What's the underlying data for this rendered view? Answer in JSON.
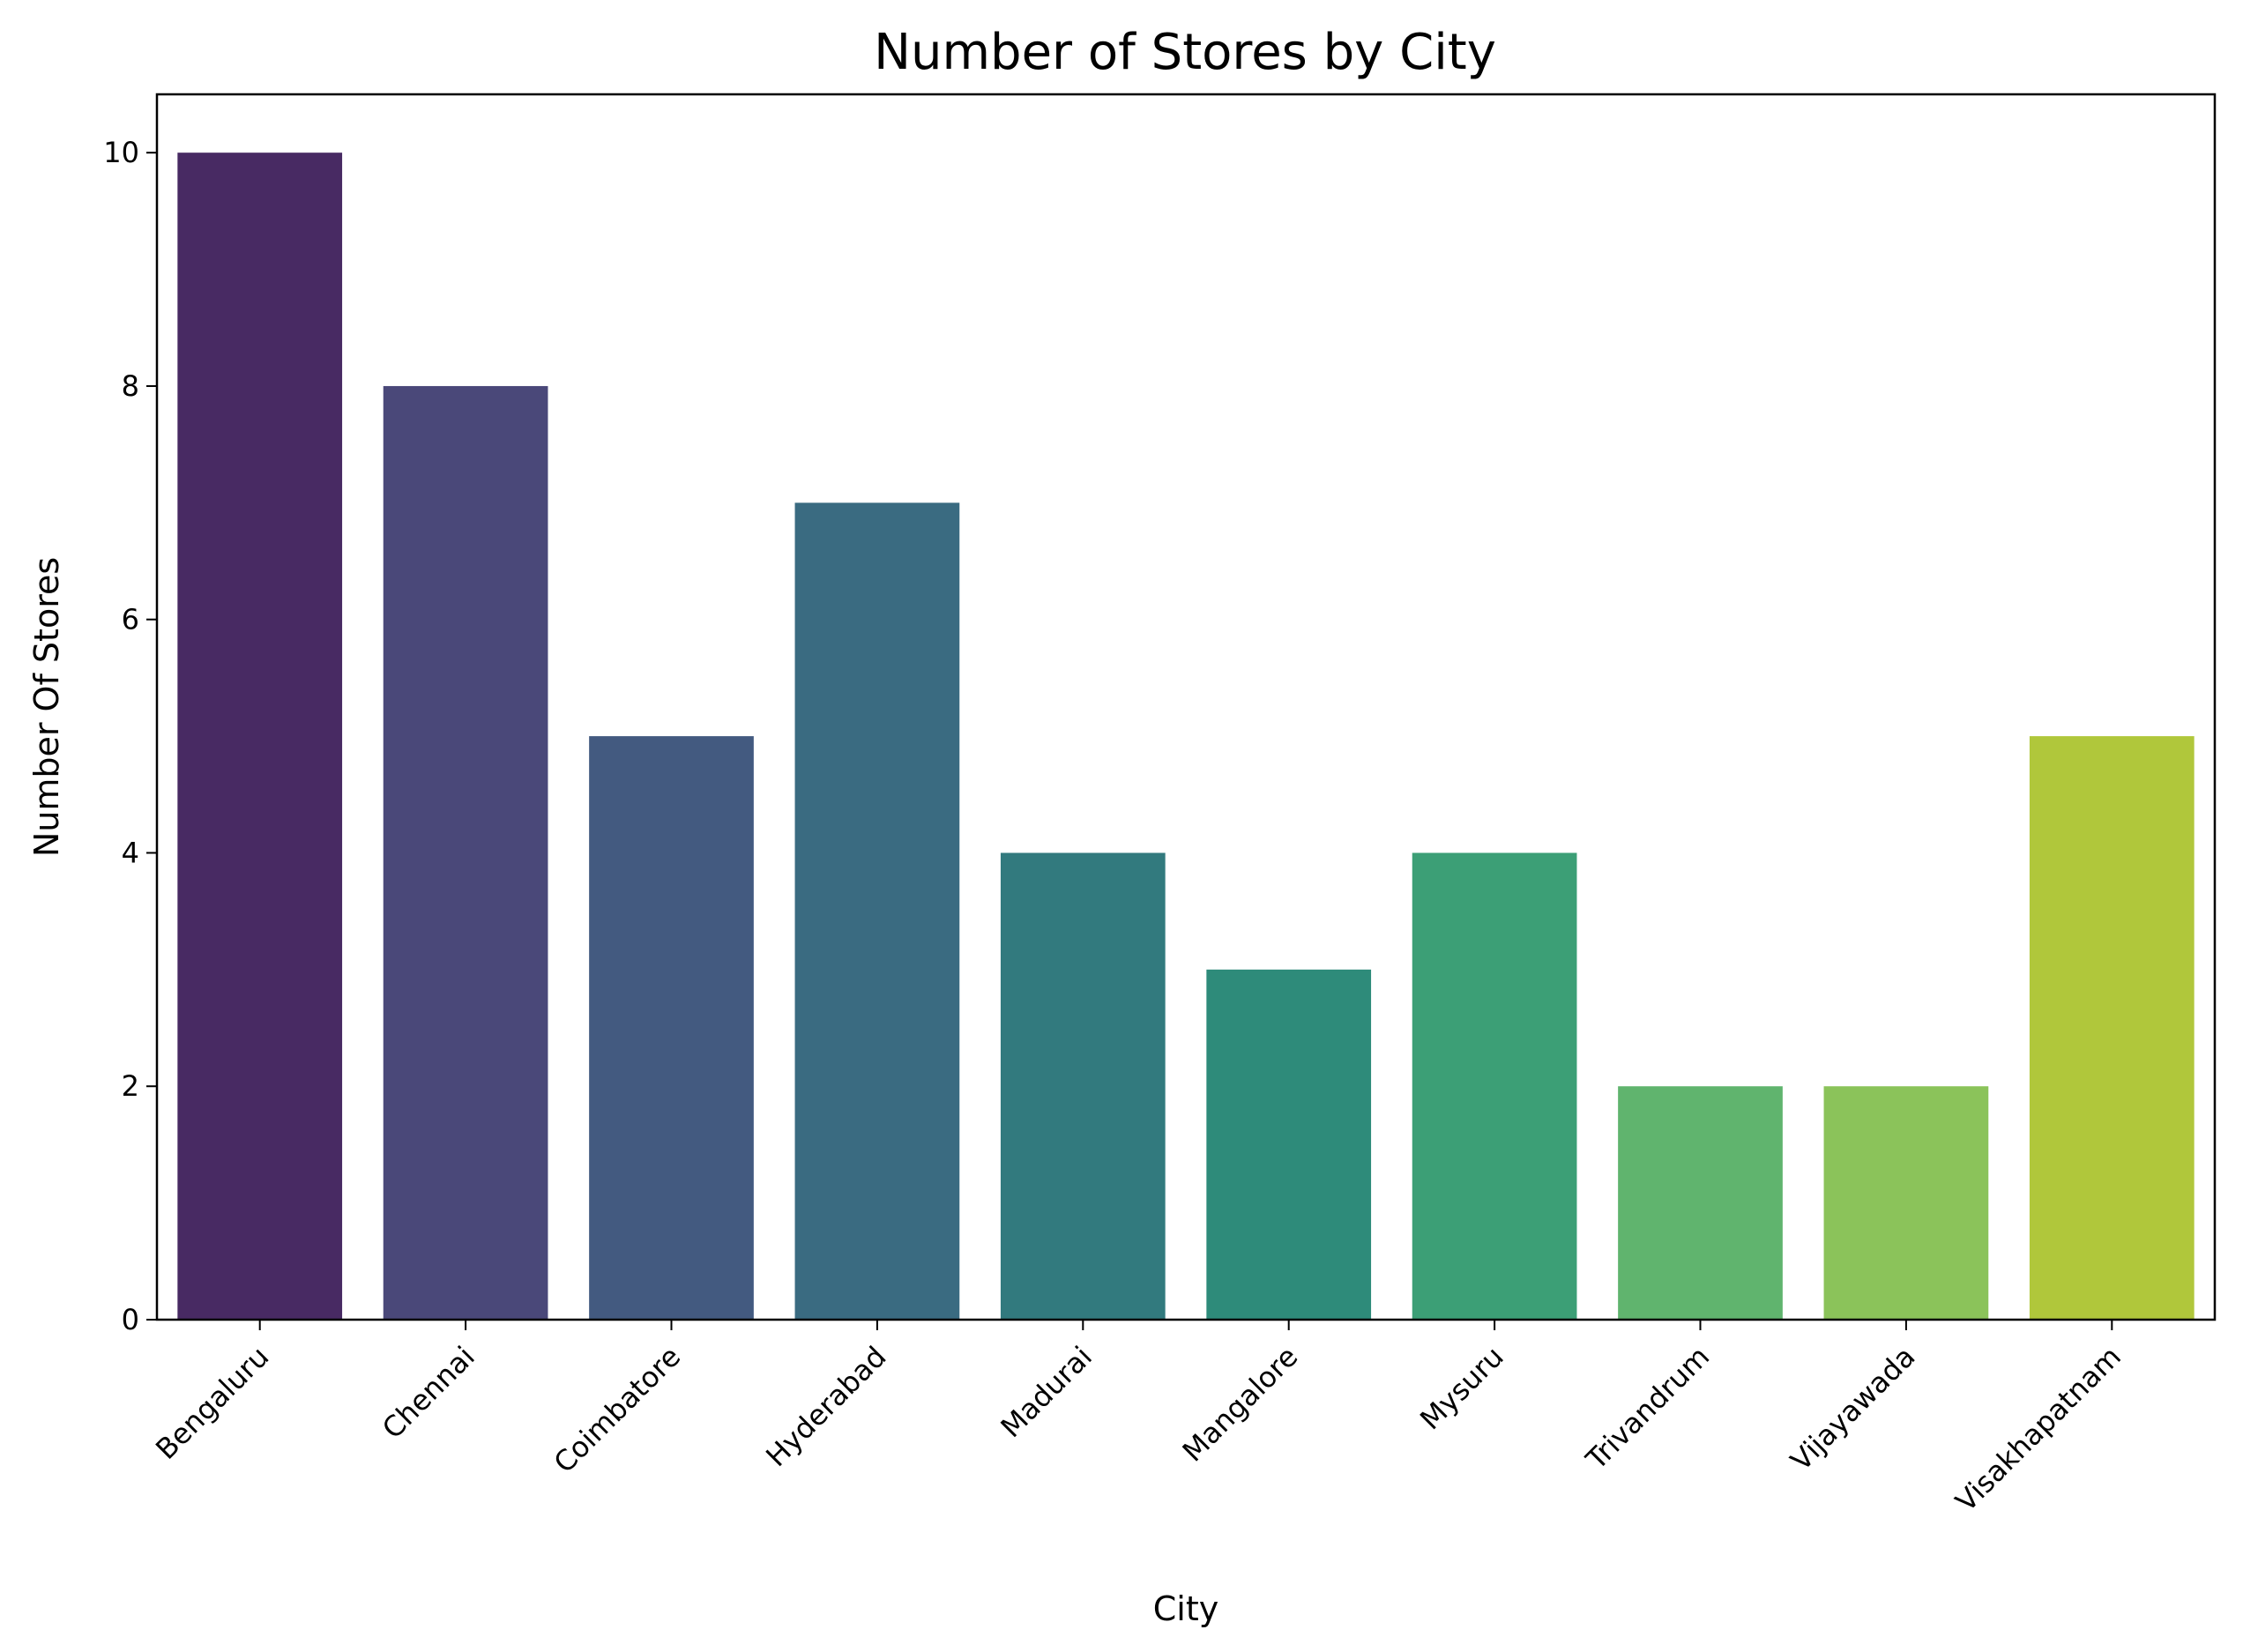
{
  "chart_data": {
    "type": "bar",
    "title": "Number of Stores by City",
    "xlabel": "City",
    "ylabel": "Number Of Stores",
    "categories": [
      "Bengaluru",
      "Chennai",
      "Coimbatore",
      "Hyderabad",
      "Madurai",
      "Mangalore",
      "Mysuru",
      "Trivandrum",
      "Vijayawada",
      "Visakhapatnam"
    ],
    "values": [
      10,
      8,
      5,
      7,
      4,
      3,
      4,
      2,
      2,
      5
    ],
    "colors": [
      "#482a63",
      "#4a4879",
      "#435a80",
      "#3a6b81",
      "#327a7e",
      "#2e8b7a",
      "#3c9f76",
      "#60b46e",
      "#8bc35a",
      "#b0c73b"
    ],
    "ylim": [
      0,
      10.5
    ],
    "yticks": [
      0,
      2,
      4,
      6,
      8,
      10
    ],
    "grid": false,
    "legend": "none"
  }
}
